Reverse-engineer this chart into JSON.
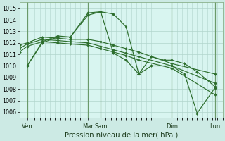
{
  "title": "Pression niveau de la mer( hPa )",
  "background_color": "#cceae4",
  "plot_background": "#d8f5f0",
  "grid_color": "#b0d4cc",
  "vline_color": "#6a9a6a",
  "line_color": "#2d6e2d",
  "xlim": [
    0,
    8.0
  ],
  "ylim": [
    1005.5,
    1015.5
  ],
  "yticks": [
    1006,
    1007,
    1008,
    1009,
    1010,
    1011,
    1012,
    1013,
    1014,
    1015
  ],
  "xtick_positions": [
    0.3,
    2.7,
    3.2,
    6.0,
    7.7
  ],
  "xtick_labels": [
    "Ven",
    "Mar",
    "Sam",
    "Dim",
    "Lun"
  ],
  "vline_positions": [
    0.3,
    2.7,
    3.2,
    6.0,
    7.7
  ],
  "lines": [
    {
      "x": [
        0.3,
        0.9,
        1.5,
        2.0,
        2.7,
        3.2,
        3.7,
        4.2,
        4.7,
        5.2,
        5.7,
        6.0,
        6.5,
        7.0,
        7.7
      ],
      "y": [
        1010.0,
        1012.0,
        1012.5,
        1012.5,
        1014.6,
        1014.7,
        1014.5,
        1013.4,
        1009.3,
        1010.8,
        1010.5,
        1010.5,
        1010.2,
        1009.5,
        1008.2
      ]
    },
    {
      "x": [
        0.3,
        0.9,
        1.5,
        2.0,
        2.7,
        3.2,
        3.7,
        4.2,
        4.7,
        5.2,
        6.0,
        6.5,
        7.0,
        7.7
      ],
      "y": [
        1010.0,
        1012.1,
        1012.6,
        1012.5,
        1014.4,
        1014.7,
        1011.1,
        1010.5,
        1009.3,
        1010.0,
        1010.0,
        1009.3,
        1005.9,
        1008.1
      ]
    },
    {
      "x": [
        0.0,
        0.3,
        0.9,
        1.5,
        2.0,
        2.7,
        3.2,
        3.7,
        4.2,
        4.7,
        6.0,
        7.7
      ],
      "y": [
        1011.8,
        1012.0,
        1012.5,
        1012.4,
        1012.3,
        1012.3,
        1012.1,
        1011.8,
        1011.5,
        1011.2,
        1010.2,
        1009.3
      ]
    },
    {
      "x": [
        0.0,
        0.3,
        0.9,
        1.5,
        2.0,
        2.7,
        3.2,
        3.7,
        4.2,
        4.7,
        6.0,
        7.7
      ],
      "y": [
        1011.5,
        1011.9,
        1012.3,
        1012.2,
        1012.1,
        1012.0,
        1011.7,
        1011.4,
        1011.1,
        1010.8,
        1010.0,
        1008.5
      ]
    },
    {
      "x": [
        0.0,
        0.3,
        0.9,
        1.5,
        2.0,
        2.7,
        3.2,
        3.7,
        4.2,
        4.7,
        6.0,
        7.7
      ],
      "y": [
        1011.2,
        1011.7,
        1012.1,
        1012.0,
        1011.9,
        1011.8,
        1011.5,
        1011.2,
        1010.9,
        1010.5,
        1009.8,
        1007.5
      ]
    }
  ]
}
